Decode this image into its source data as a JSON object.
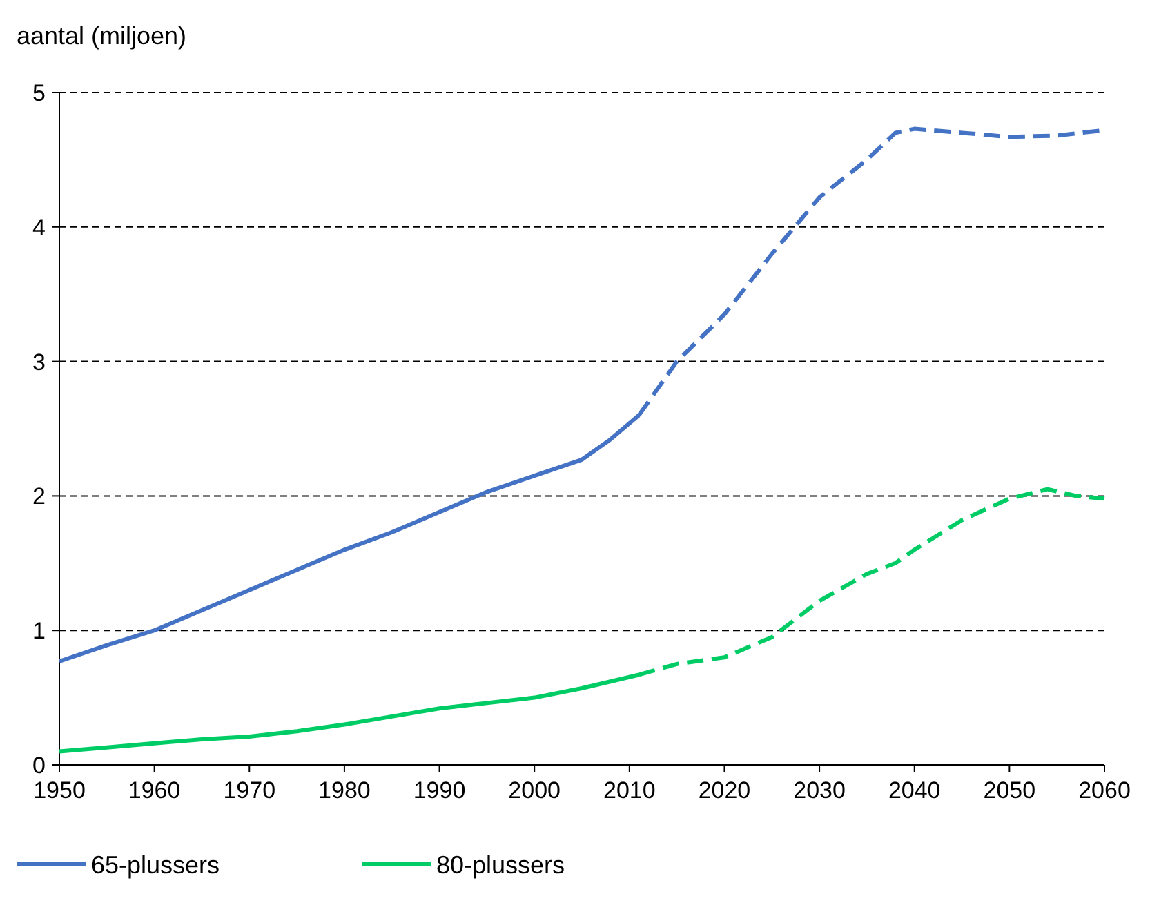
{
  "chart_data": {
    "type": "line",
    "ylabel": "aantal (miljoen)",
    "xlim": [
      1950,
      2060
    ],
    "xticks": [
      1950,
      1960,
      1970,
      1980,
      1990,
      2000,
      2010,
      2020,
      2030,
      2040,
      2050,
      2060
    ],
    "ylim": [
      0,
      5
    ],
    "yticks": [
      0,
      1,
      2,
      3,
      4,
      5
    ],
    "grid": "y",
    "legend": "bottom",
    "series": [
      {
        "name": "65-plussers",
        "color": "#4472c4",
        "line_style": "solid",
        "x": [
          1950,
          1955,
          1960,
          1965,
          1970,
          1975,
          1980,
          1985,
          1990,
          1995,
          2000,
          2005,
          2008,
          2011
        ],
        "values": [
          0.77,
          0.89,
          1.0,
          1.15,
          1.3,
          1.45,
          1.6,
          1.73,
          1.88,
          2.03,
          2.15,
          2.27,
          2.42,
          2.6
        ]
      },
      {
        "color": "#4472c4",
        "line_style": "dashed",
        "x": [
          2011,
          2015,
          2020,
          2025,
          2030,
          2035,
          2038,
          2040,
          2045,
          2050,
          2055,
          2060
        ],
        "values": [
          2.6,
          3.0,
          3.35,
          3.8,
          4.22,
          4.5,
          4.7,
          4.73,
          4.7,
          4.67,
          4.68,
          4.72
        ]
      },
      {
        "name": "80-plussers",
        "color": "#00cc66",
        "line_style": "solid",
        "x": [
          1950,
          1955,
          1960,
          1965,
          1970,
          1975,
          1980,
          1985,
          1990,
          1995,
          2000,
          2005,
          2011
        ],
        "values": [
          0.1,
          0.13,
          0.16,
          0.19,
          0.21,
          0.25,
          0.3,
          0.36,
          0.42,
          0.46,
          0.5,
          0.57,
          0.67
        ]
      },
      {
        "color": "#00cc66",
        "line_style": "dashed",
        "x": [
          2011,
          2015,
          2020,
          2025,
          2030,
          2035,
          2038,
          2040,
          2045,
          2050,
          2054,
          2057,
          2060
        ],
        "values": [
          0.67,
          0.75,
          0.8,
          0.95,
          1.22,
          1.42,
          1.5,
          1.6,
          1.82,
          1.98,
          2.05,
          2.0,
          1.98
        ]
      }
    ]
  }
}
